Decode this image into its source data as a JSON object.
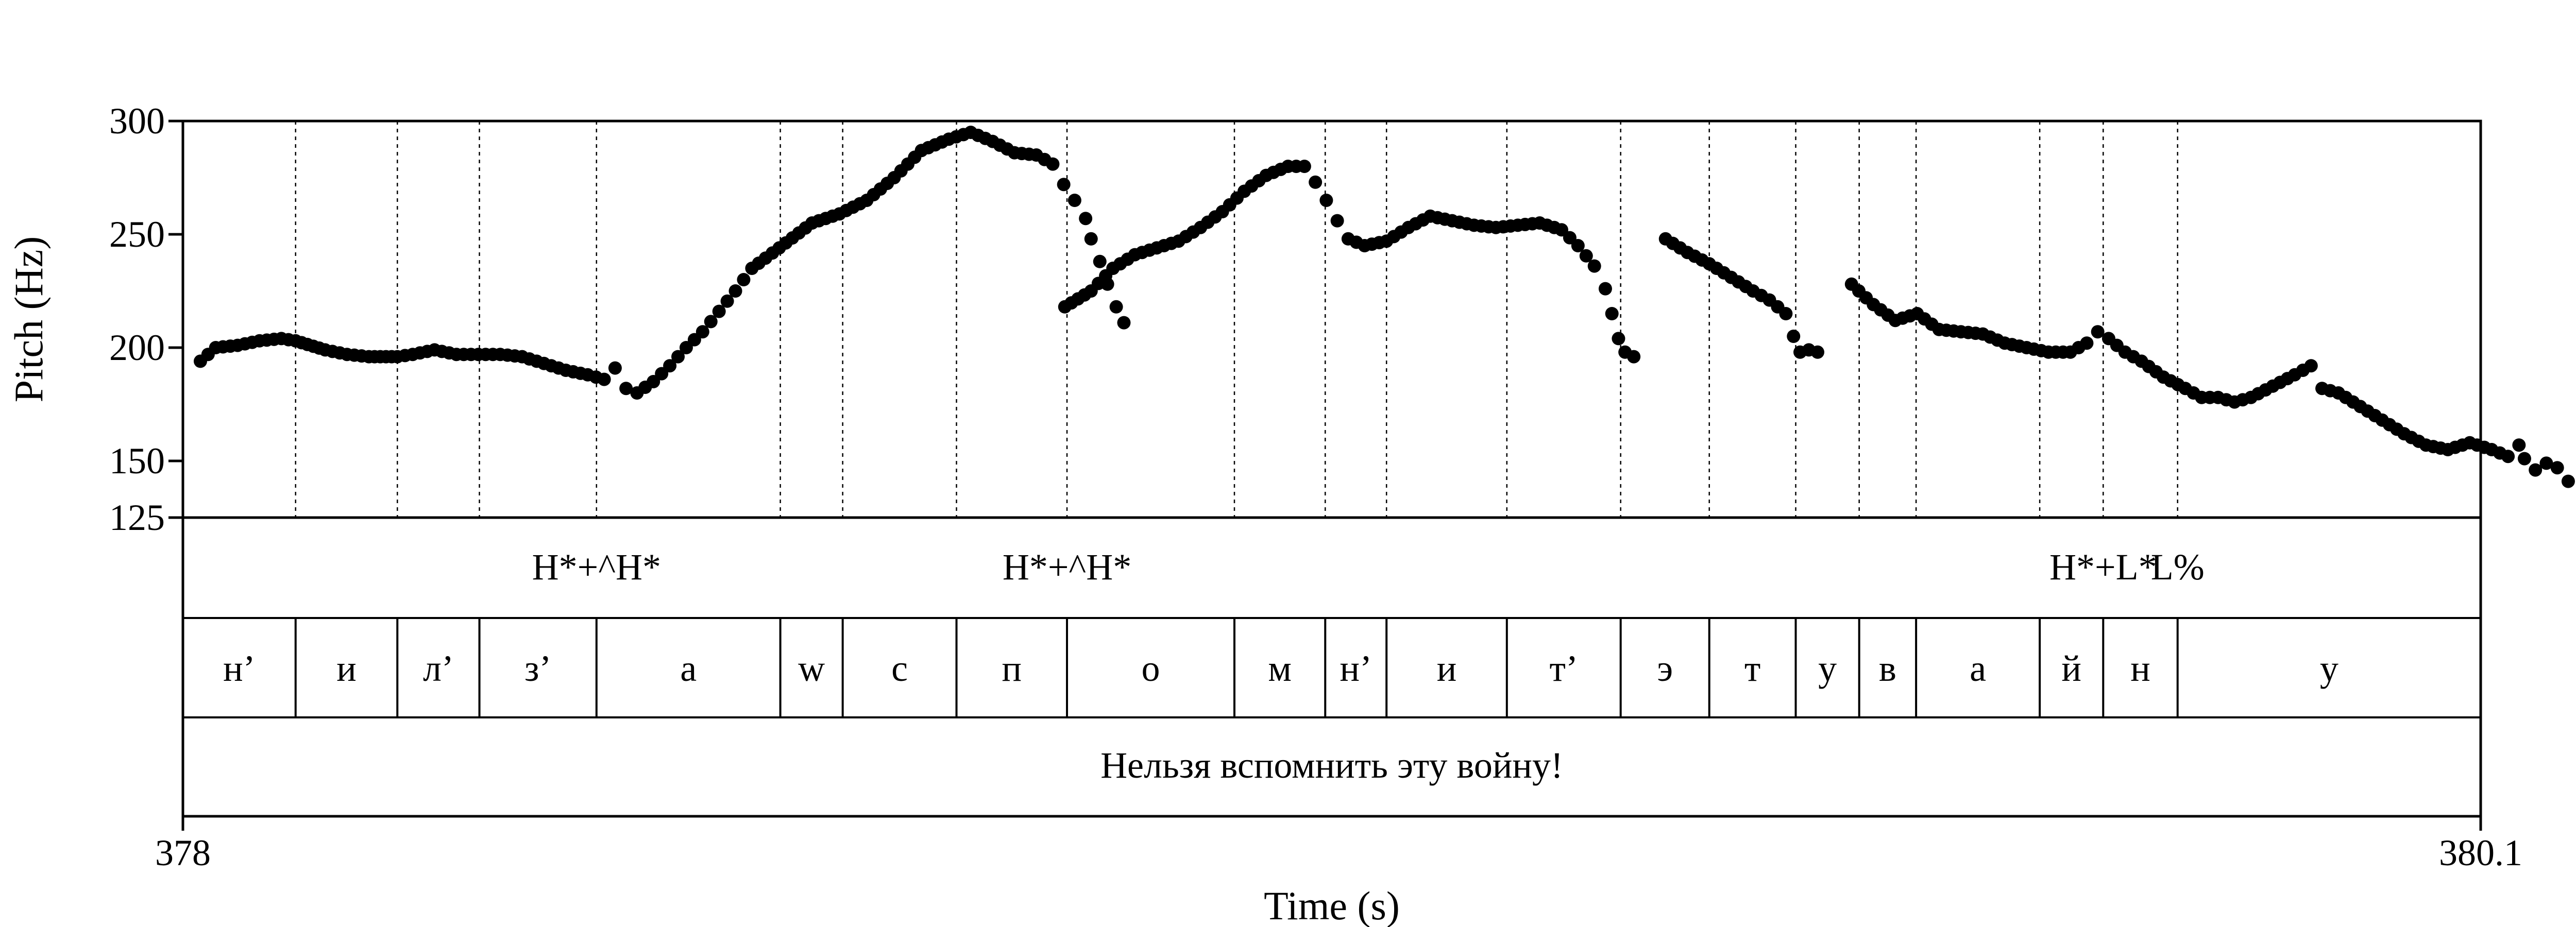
{
  "chart_data": {
    "type": "scatter",
    "title": "",
    "xlabel": "Time (s)",
    "ylabel": "Pitch (Hz)",
    "xlim": [
      378,
      380.1
    ],
    "ylim": [
      125,
      300
    ],
    "y_ticks": [
      {
        "value": 125,
        "label": "125"
      },
      {
        "value": 150,
        "label": "150"
      },
      {
        "value": 200,
        "label": "200"
      },
      {
        "value": 250,
        "label": "250"
      },
      {
        "value": 300,
        "label": "300"
      }
    ],
    "x_ticks": [
      {
        "value": 378,
        "label": "378"
      },
      {
        "value": 380.1,
        "label": "380.1"
      }
    ],
    "grid": false,
    "boundaries": [
      378.103,
      378.196,
      378.271,
      378.378,
      378.546,
      378.603,
      378.707,
      378.808,
      378.961,
      379.044,
      379.1,
      379.21,
      379.314,
      379.395,
      379.474,
      379.532,
      379.584,
      379.697,
      379.755,
      379.823
    ],
    "pitch_contours": [
      [
        [
          378.016,
          194
        ],
        [
          378.03,
          200
        ],
        [
          378.05,
          201
        ],
        [
          378.07,
          203
        ],
        [
          378.09,
          204
        ],
        [
          378.103,
          203
        ],
        [
          378.13,
          199
        ],
        [
          378.15,
          197
        ],
        [
          378.17,
          196
        ],
        [
          378.196,
          196
        ],
        [
          378.21,
          197
        ],
        [
          378.23,
          199
        ],
        [
          378.25,
          197
        ],
        [
          378.27,
          197
        ],
        [
          378.29,
          197
        ],
        [
          378.31,
          196
        ],
        [
          378.33,
          193
        ],
        [
          378.35,
          190
        ],
        [
          378.37,
          188
        ],
        [
          378.385,
          186
        ],
        [
          378.395,
          191
        ],
        [
          378.405,
          182
        ],
        [
          378.415,
          180
        ],
        [
          378.43,
          185
        ],
        [
          378.445,
          192
        ],
        [
          378.46,
          200
        ],
        [
          378.475,
          207
        ],
        [
          378.49,
          216
        ],
        [
          378.505,
          225
        ],
        [
          378.52,
          235
        ],
        [
          378.545,
          244
        ],
        [
          378.575,
          255
        ],
        [
          378.6,
          259
        ],
        [
          378.625,
          265
        ],
        [
          378.65,
          275
        ],
        [
          378.675,
          287
        ],
        [
          378.7,
          292
        ],
        [
          378.72,
          295
        ],
        [
          378.74,
          291
        ],
        [
          378.76,
          286
        ],
        [
          378.78,
          285
        ],
        [
          378.795,
          281
        ],
        [
          378.805,
          272
        ],
        [
          378.815,
          265
        ],
        [
          378.825,
          257
        ],
        [
          378.83,
          248
        ],
        [
          378.838,
          238
        ],
        [
          378.845,
          228
        ],
        [
          378.853,
          218
        ],
        [
          378.86,
          211
        ]
      ],
      [
        [
          378.806,
          218
        ],
        [
          378.83,
          225
        ],
        [
          378.85,
          235
        ],
        [
          378.87,
          241
        ],
        [
          378.89,
          244
        ],
        [
          378.91,
          247
        ],
        [
          378.93,
          253
        ],
        [
          378.95,
          260
        ],
        [
          378.97,
          269
        ],
        [
          378.99,
          276
        ],
        [
          379.01,
          280
        ],
        [
          379.025,
          280
        ],
        [
          379.035,
          273
        ],
        [
          379.045,
          265
        ],
        [
          379.055,
          256
        ],
        [
          379.065,
          248
        ],
        [
          379.08,
          245
        ],
        [
          379.1,
          247
        ],
        [
          379.12,
          253
        ],
        [
          379.14,
          258
        ],
        [
          379.16,
          256
        ],
        [
          379.18,
          254
        ],
        [
          379.2,
          253
        ],
        [
          379.22,
          254
        ],
        [
          379.24,
          255
        ],
        [
          379.26,
          252
        ],
        [
          379.275,
          245
        ],
        [
          379.29,
          236
        ],
        [
          379.3,
          226
        ],
        [
          379.306,
          215
        ],
        [
          379.312,
          204
        ],
        [
          379.318,
          198
        ],
        [
          379.326,
          196
        ]
      ],
      [
        [
          379.355,
          248
        ],
        [
          379.375,
          242
        ],
        [
          379.395,
          237
        ],
        [
          379.415,
          231
        ],
        [
          379.435,
          225
        ],
        [
          379.45,
          221
        ],
        [
          379.465,
          215
        ],
        [
          379.472,
          205
        ],
        [
          379.478,
          198
        ],
        [
          379.486,
          199
        ],
        [
          379.494,
          198
        ]
      ],
      [
        [
          379.525,
          228
        ],
        [
          379.545,
          219
        ],
        [
          379.565,
          212
        ],
        [
          379.585,
          215
        ],
        [
          379.605,
          208
        ],
        [
          379.625,
          207
        ],
        [
          379.645,
          206
        ],
        [
          379.665,
          202
        ],
        [
          379.685,
          200
        ],
        [
          379.705,
          198
        ],
        [
          379.725,
          198
        ],
        [
          379.74,
          202
        ],
        [
          379.75,
          207
        ],
        [
          379.76,
          204
        ],
        [
          379.775,
          198
        ],
        [
          379.79,
          194
        ],
        [
          379.81,
          187
        ],
        [
          379.83,
          182
        ],
        [
          379.845,
          178
        ],
        [
          379.86,
          178
        ],
        [
          379.875,
          176
        ],
        [
          379.89,
          178
        ],
        [
          379.91,
          183
        ],
        [
          379.93,
          188
        ],
        [
          379.945,
          192
        ],
        [
          379.955,
          182
        ],
        [
          379.97,
          180
        ],
        [
          379.99,
          174
        ],
        [
          380.01,
          168
        ],
        [
          380.03,
          162
        ],
        [
          380.05,
          157
        ],
        [
          380.07,
          155
        ],
        [
          380.09,
          158
        ],
        [
          380.11,
          155
        ],
        [
          380.125,
          152
        ],
        [
          380.135,
          157
        ],
        [
          380.14,
          151
        ],
        [
          380.15,
          146
        ],
        [
          380.16,
          149
        ],
        [
          380.17,
          147
        ],
        [
          380.18,
          141
        ]
      ]
    ],
    "tone_tier": [
      {
        "time": 378.378,
        "label": "H*+^H*"
      },
      {
        "time": 378.808,
        "label": "H*+^H*"
      },
      {
        "time": 379.755,
        "label": "H*+L*"
      },
      {
        "time": 379.823,
        "label": "L%"
      }
    ],
    "segment_tier": [
      "н’",
      "и",
      "л’",
      "з’",
      "а",
      "w",
      "с",
      "п",
      "о",
      "м",
      "н’",
      "и",
      "т’",
      "э",
      "т",
      "у",
      "в",
      "а",
      "й",
      "н",
      "у"
    ],
    "sentence_tier": "Нельзя вспомнить эту войну!"
  }
}
